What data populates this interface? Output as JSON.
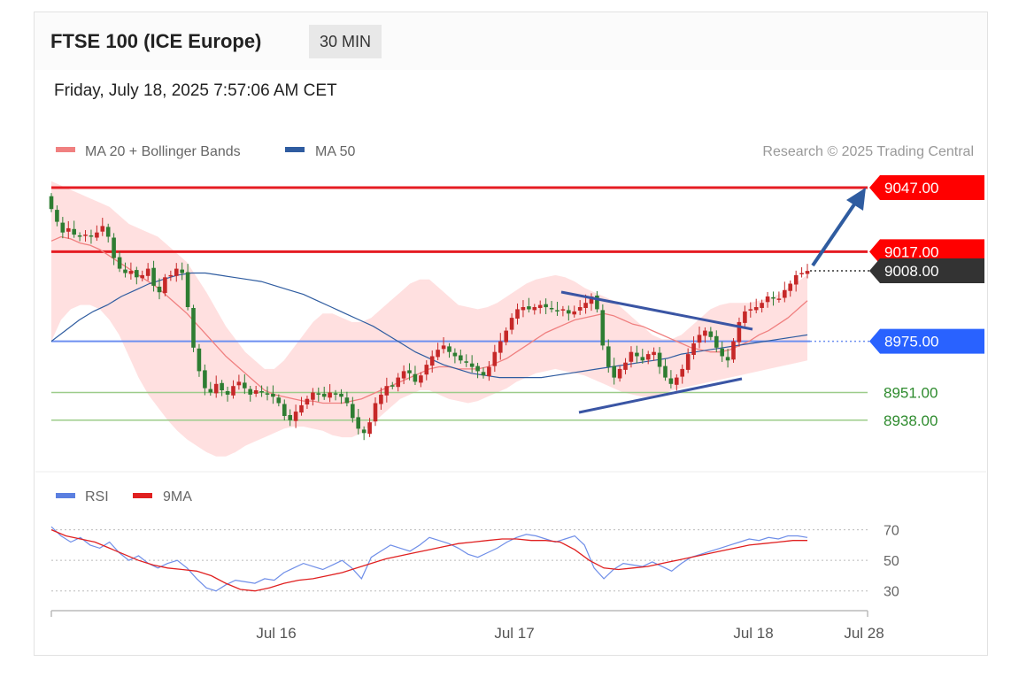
{
  "header": {
    "title": "FTSE 100 (ICE Europe)",
    "timeframe": "30 MIN",
    "timestamp": "Friday, July 18, 2025 7:57:06 AM CET"
  },
  "legend": {
    "items": [
      {
        "label": "MA 20 + Bollinger Bands",
        "color": "#f08080"
      },
      {
        "label": "MA 50",
        "color": "#2f5ca0"
      }
    ],
    "credit": "Research © 2025 Trading Central"
  },
  "rsi_legend": {
    "items": [
      {
        "label": "RSI",
        "color": "#5b7fe0"
      },
      {
        "label": "9MA",
        "color": "#e02020"
      }
    ]
  },
  "colors": {
    "up": "#c62828",
    "down": "#2e7d32",
    "resistance": "#e51c23",
    "pivot": "#2962ff",
    "support": "#8bc34a",
    "ma50": "#2f5ca0",
    "ma20": "#f08080",
    "band": "#ffd6d6",
    "trendline": "#3a55a4"
  },
  "chart_data": {
    "type": "candlestick",
    "title": "FTSE 100 (ICE Europe)",
    "interval": "30 MIN",
    "x_ticks": [
      "Jul 16",
      "Jul 17",
      "Jul 18",
      "Jul 28"
    ],
    "y_range": [
      8918,
      9052
    ],
    "levels": [
      {
        "value": 9047.0,
        "label": "9047.00",
        "type": "resistance"
      },
      {
        "value": 9017.0,
        "label": "9017.00",
        "type": "resistance"
      },
      {
        "value": 9008.0,
        "label": "9008.00",
        "type": "last"
      },
      {
        "value": 8975.0,
        "label": "8975.00",
        "type": "pivot"
      },
      {
        "value": 8951.0,
        "label": "8951.00",
        "type": "support"
      },
      {
        "value": 8938.0,
        "label": "8938.00",
        "type": "support"
      }
    ],
    "close": [
      9037,
      9031,
      9026,
      9028,
      9025,
      9024,
      9025,
      9024,
      9026,
      9029,
      9024,
      9014,
      9009,
      9007,
      9008,
      9005,
      9006,
      9009,
      9001,
      8998,
      9005,
      9006,
      9009,
      9007,
      8991,
      8972,
      8961,
      8953,
      8951,
      8955,
      8952,
      8950,
      8954,
      8956,
      8953,
      8950,
      8952,
      8951,
      8950,
      8949,
      8946,
      8940,
      8938,
      8942,
      8945,
      8948,
      8951,
      8950,
      8949,
      8951,
      8950,
      8949,
      8946,
      8939,
      8934,
      8932,
      8937,
      8946,
      8950,
      8954,
      8954,
      8958,
      8961,
      8960,
      8956,
      8959,
      8964,
      8968,
      8971,
      8973,
      8970,
      8968,
      8966,
      8965,
      8963,
      8961,
      8959,
      8963,
      8970,
      8975,
      8980,
      8986,
      8990,
      8991,
      8990,
      8991,
      8992,
      8991,
      8990,
      8989,
      8990,
      8988,
      8989,
      8991,
      8993,
      8996,
      8990,
      8973,
      8963,
      8958,
      8962,
      8965,
      8970,
      8968,
      8966,
      8969,
      8970,
      8963,
      8958,
      8955,
      8958,
      8962,
      8969,
      8974,
      8978,
      8980,
      8977,
      8972,
      8968,
      8966,
      8975,
      8984,
      8989,
      8990,
      8991,
      8993,
      8996,
      8995,
      8995,
      8999,
      9002,
      9006,
      9007,
      9008
    ],
    "ma20": [
      9022,
      9024,
      9023,
      9021,
      9020,
      9018,
      9015,
      9012,
      9009,
      9006,
      9003,
      9000,
      8996,
      8992,
      8988,
      8983,
      8978,
      8973,
      8968,
      8964,
      8960,
      8956,
      8952,
      8950,
      8949,
      8948,
      8947,
      8947,
      8946,
      8946,
      8946,
      8947,
      8948,
      8950,
      8952,
      8954,
      8956,
      8958,
      8960,
      8962,
      8963,
      8963,
      8962,
      8962,
      8962,
      8963,
      8965,
      8967,
      8970,
      8973,
      8976,
      8979,
      8981,
      8983,
      8985,
      8986,
      8987,
      8988,
      8987,
      8985,
      8983,
      8982,
      8980,
      8978,
      8976,
      8974,
      8972,
      8971,
      8970,
      8970,
      8971,
      8973,
      8975,
      8978,
      8980,
      8983,
      8986,
      8990,
      8994
    ],
    "ma50": [
      8975,
      8980,
      8985,
      8989,
      8992,
      8996,
      8999,
      9002,
      9004,
      9006,
      9007,
      9007,
      9006,
      9005,
      9004,
      9003,
      9001,
      8999,
      8997,
      8994,
      8991,
      8988,
      8985,
      8982,
      8978,
      8974,
      8970,
      8967,
      8964,
      8962,
      8960,
      8959,
      8958,
      8958,
      8958,
      8958,
      8959,
      8960,
      8961,
      8962,
      8963,
      8964,
      8965,
      8966,
      8967,
      8969,
      8970,
      8971,
      8972,
      8973,
      8974,
      8975,
      8976,
      8977,
      8978
    ],
    "bb_upper": [
      9050,
      9048,
      9046,
      9044,
      9042,
      9040,
      9038,
      9034,
      9030,
      9028,
      9026,
      9024,
      9020,
      9016,
      9012,
      9005,
      8998,
      8990,
      8982,
      8976,
      8970,
      8966,
      8962,
      8962,
      8966,
      8972,
      8978,
      8984,
      8988,
      8988,
      8986,
      8984,
      8984,
      8986,
      8990,
      8994,
      8998,
      9002,
      9004,
      9004,
      9000,
      8996,
      8992,
      8991,
      8990,
      8991,
      8993,
      8996,
      8999,
      9002,
      9004,
      9005,
      9006,
      9005,
      9003,
      9000,
      8998,
      8996,
      8994,
      8990,
      8986,
      8982,
      8978,
      8976,
      8976,
      8978,
      8982,
      8986,
      8990,
      8992,
      8993,
      8993,
      8993,
      8994,
      8995,
      8997,
      9000,
      9003,
      9006
    ],
    "bb_lower": [
      8975,
      8985,
      8990,
      8992,
      8992,
      8990,
      8985,
      8978,
      8968,
      8958,
      8950,
      8944,
      8938,
      8933,
      8929,
      8926,
      8923,
      8921,
      8921,
      8923,
      8926,
      8928,
      8930,
      8932,
      8934,
      8935,
      8935,
      8934,
      8933,
      8931,
      8930,
      8930,
      8932,
      8936,
      8940,
      8944,
      8948,
      8950,
      8952,
      8952,
      8950,
      8948,
      8947,
      8946,
      8947,
      8949,
      8951,
      8953,
      8956,
      8958,
      8960,
      8961,
      8962,
      8961,
      8960,
      8959,
      8957,
      8955,
      8953,
      8951,
      8950,
      8949,
      8949,
      8950,
      8952,
      8953,
      8954,
      8955,
      8956,
      8957,
      8958,
      8959,
      8960,
      8961,
      8962,
      8963,
      8964,
      8965,
      8966
    ],
    "rsi": [
      72,
      66,
      62,
      65,
      60,
      58,
      62,
      55,
      50,
      53,
      48,
      45,
      48,
      50,
      45,
      38,
      32,
      30,
      34,
      37,
      36,
      35,
      38,
      37,
      42,
      45,
      48,
      46,
      44,
      47,
      50,
      45,
      38,
      52,
      56,
      60,
      58,
      56,
      60,
      65,
      63,
      61,
      58,
      54,
      52,
      55,
      58,
      62,
      65,
      67,
      66,
      64,
      62,
      64,
      66,
      60,
      45,
      38,
      44,
      48,
      47,
      46,
      49,
      46,
      43,
      48,
      52,
      54,
      56,
      58,
      60,
      62,
      64,
      63,
      65,
      64,
      66,
      66,
      65
    ],
    "rsi_ma": [
      70,
      66,
      64,
      62,
      58,
      54,
      50,
      47,
      45,
      44,
      43,
      40,
      35,
      31,
      30,
      32,
      35,
      37,
      38,
      40,
      42,
      45,
      48,
      51,
      53,
      55,
      57,
      59,
      61,
      62,
      63,
      64,
      64,
      63,
      63,
      62,
      57,
      50,
      45,
      44,
      45,
      46,
      48,
      50,
      52,
      54,
      56,
      58,
      60,
      61,
      62,
      63,
      63
    ]
  }
}
